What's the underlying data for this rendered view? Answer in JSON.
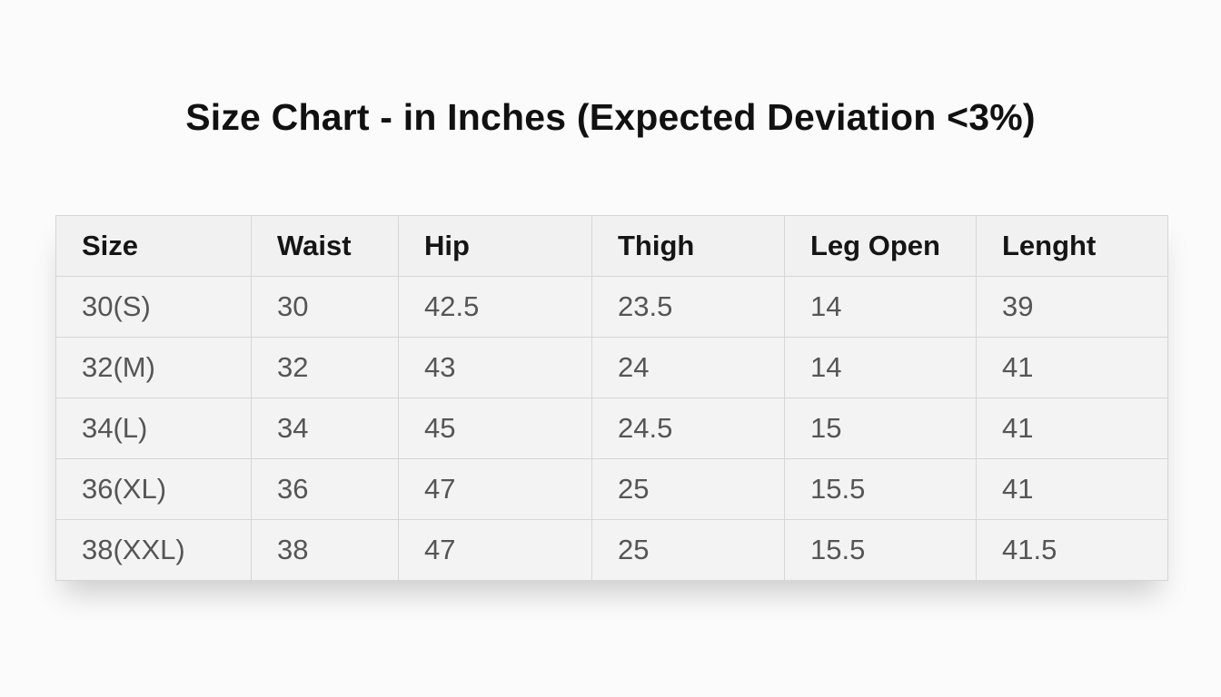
{
  "title": "Size Chart - in Inches (Expected Deviation <3%)",
  "table": {
    "headers": [
      "Size",
      "Waist",
      "Hip",
      "Thigh",
      "Leg Open",
      "Lenght"
    ],
    "rows": [
      [
        "30(S)",
        "30",
        "42.5",
        "23.5",
        "14",
        "39"
      ],
      [
        "32(M)",
        "32",
        "43",
        "24",
        "14",
        "41"
      ],
      [
        "34(L)",
        "34",
        "45",
        "24.5",
        "15",
        "41"
      ],
      [
        "36(XL)",
        "36",
        "47",
        "25",
        "15.5",
        "41"
      ],
      [
        "38(XXL)",
        "38",
        "47",
        "25",
        "15.5",
        "41.5"
      ]
    ]
  }
}
